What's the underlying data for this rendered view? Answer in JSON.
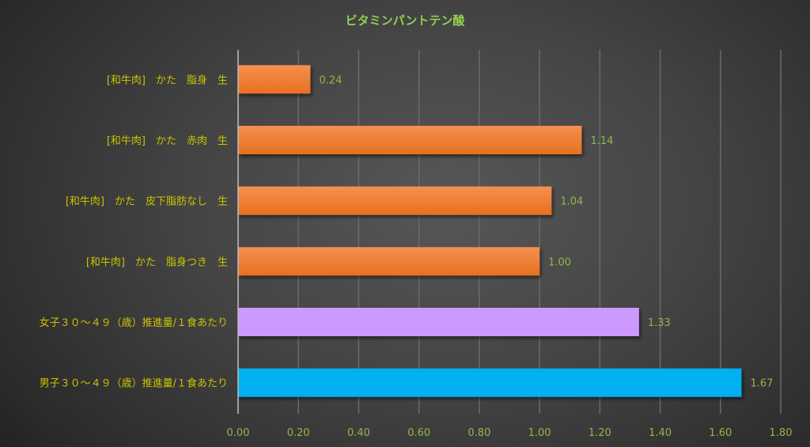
{
  "chart_data": {
    "type": "bar",
    "orientation": "horizontal",
    "title": "ビタミンパントテン酸",
    "categories": [
      "[和牛肉]　かた　脂身　生",
      "[和牛肉]　かた　赤肉　生",
      "[和牛肉]　かた　皮下脂肪なし　生",
      "[和牛肉]　かた　脂身つき　生",
      "女子３０～４９（歳）推進量/１食あたり",
      "男子３０～４９（歳）推進量/１食あたり"
    ],
    "values": [
      0.24,
      1.14,
      1.04,
      1.0,
      1.33,
      1.67
    ],
    "data_labels": [
      "0.24",
      "1.14",
      "1.04",
      "1.00",
      "1.33",
      "1.67"
    ],
    "bar_colors": [
      "#ed7d31",
      "#ed7d31",
      "#ed7d31",
      "#ed7d31",
      "#cc99ff",
      "#00b0f0"
    ],
    "xlim": [
      0,
      1.8
    ],
    "xticks": [
      "0.00",
      "0.20",
      "0.40",
      "0.60",
      "0.80",
      "1.00",
      "1.20",
      "1.40",
      "1.60",
      "1.80"
    ],
    "xlabel": "",
    "ylabel": "",
    "grid": "vertical",
    "legend": "none",
    "colors": {
      "title": "#92d050",
      "category_text": "#c9c400",
      "tick_text": "#8fb84a",
      "data_label": "#8fb84a",
      "grid": "#6a6a6a",
      "axis": "#bfbfbf"
    }
  }
}
